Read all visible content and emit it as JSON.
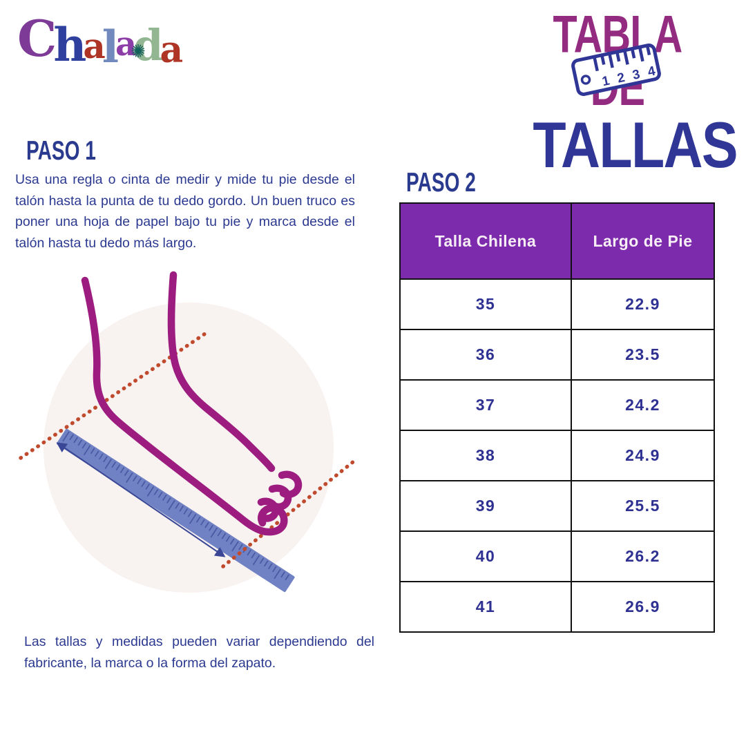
{
  "colors": {
    "navy": "#2B3990",
    "heading_navy": "#2A3B8F",
    "title_magenta": "#932B80",
    "title_navy": "#2F3695",
    "header_purple": "#7C2BAD",
    "header_text": "#F7EEF5",
    "cell_navy": "#2E3192",
    "foot_magenta": "#9C1C7F",
    "ruler_blue": "#7081C4",
    "tick_navy": "#46549F",
    "dotted_red": "#C04A2D",
    "arrow_navy": "#3A4796",
    "circle_bg": "#F8F2F0",
    "border_black": "#111111",
    "ornament_teal": "#14605A"
  },
  "logo": {
    "name": "Chalada",
    "letters": [
      {
        "char": "C",
        "color": "#7E3A97"
      },
      {
        "char": "h",
        "color": "#2E3F9E"
      },
      {
        "char": "a",
        "color": "#AE3426"
      },
      {
        "char": "l",
        "color": "#7289BD"
      },
      {
        "char": "a",
        "color": "#8C3DA8"
      },
      {
        "char": "d",
        "color": "#92B592"
      },
      {
        "char": "a",
        "color": "#AE3426"
      }
    ],
    "ornament": "✺"
  },
  "title": {
    "line1": "TABLA DE",
    "line2": "TALLAS",
    "ruler_numbers": [
      "1",
      "2",
      "3",
      "4"
    ]
  },
  "step1": {
    "heading": "PASO 1",
    "body": "Usa una regla o cinta de medir y mide tu pie desde el talón hasta la punta de tu dedo gordo. Un buen truco es poner una hoja de papel bajo tu pie y marca desde el talón hasta tu dedo más largo."
  },
  "step2": {
    "heading": "PASO 2"
  },
  "size_table": {
    "headers": [
      "Talla Chilena",
      "Largo de Pie"
    ],
    "rows": [
      [
        "35",
        "22.9"
      ],
      [
        "36",
        "23.5"
      ],
      [
        "37",
        "24.2"
      ],
      [
        "38",
        "24.9"
      ],
      [
        "39",
        "25.5"
      ],
      [
        "40",
        "26.2"
      ],
      [
        "41",
        "26.9"
      ]
    ]
  },
  "footnote": "Las tallas y medidas pueden variar dependiendo del fabricante, la marca o la forma del zapato."
}
